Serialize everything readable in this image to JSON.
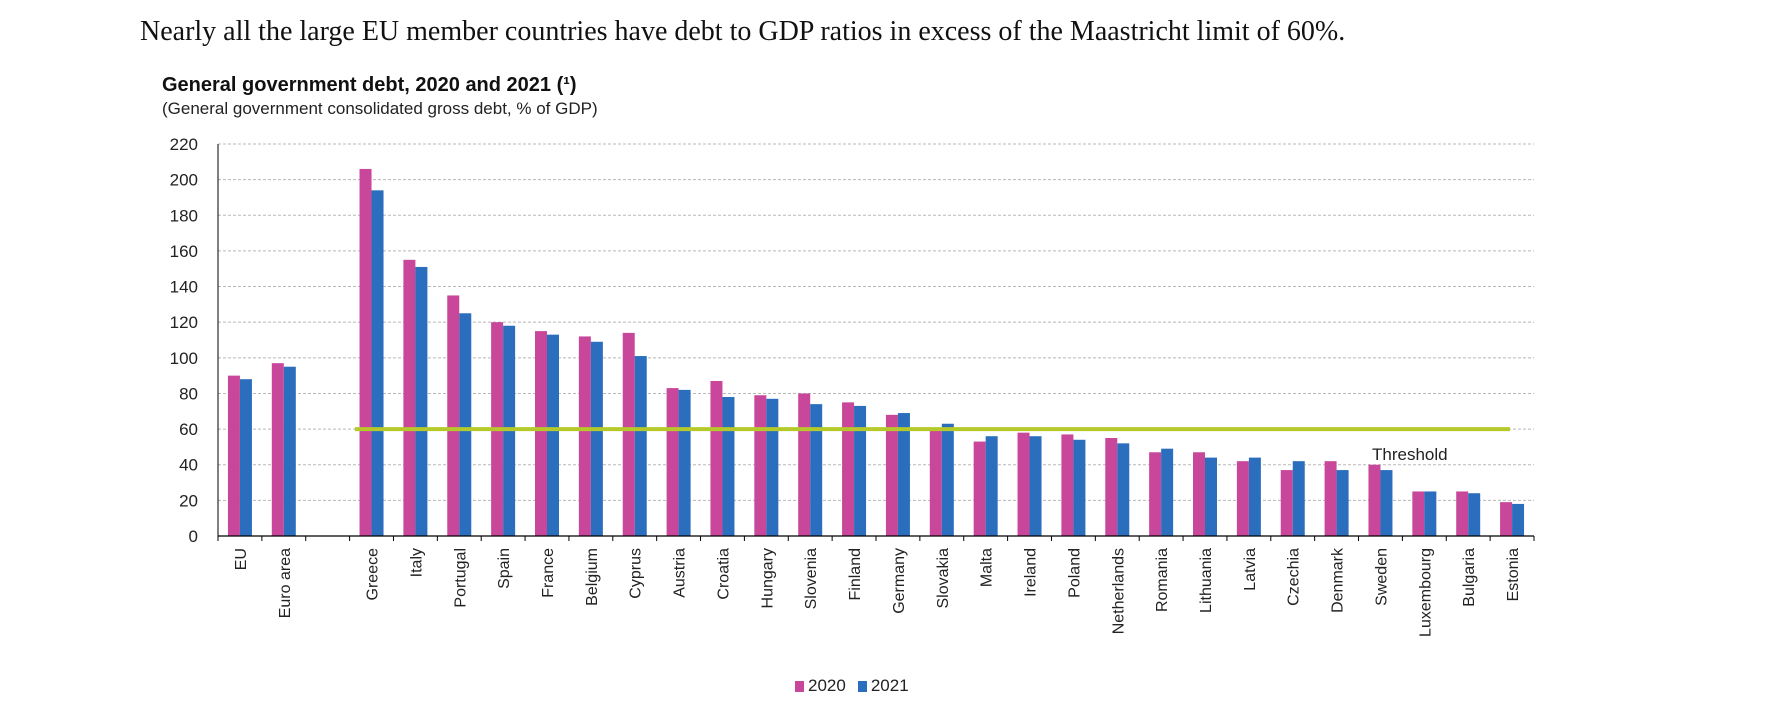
{
  "caption": "Nearly all the large EU member countries have debt to GDP ratios in excess of the Maastricht limit of 60%.",
  "chart_data": {
    "type": "bar",
    "title": "General government debt, 2020 and 2021 (¹)",
    "subtitle": "(General  government  consolidated gross debt, % of GDP)",
    "xlabel": "",
    "ylabel": "",
    "ylim": [
      0,
      220
    ],
    "yticks": [
      "0",
      "20",
      "40",
      "60",
      "80",
      "100",
      "120",
      "140",
      "160",
      "180",
      "200",
      "220"
    ],
    "grid": true,
    "legend_position": "bottom",
    "categories": [
      "EU",
      "Euro area",
      "",
      "Greece",
      "Italy",
      "Portugal",
      "Spain",
      "France",
      "Belgium",
      "Cyprus",
      "Austria",
      "Croatia",
      "Hungary",
      "Slovenia",
      "Finland",
      "Germany",
      "Slovakia",
      "Malta",
      "Ireland",
      "Poland",
      "Netherlands",
      "Romania",
      "Lithuania",
      "Latvia",
      "Czechia",
      "Denmark",
      "Sweden",
      "Luxembourg",
      "Bulgaria",
      "Estonia"
    ],
    "series": [
      {
        "name": "2020",
        "color": "#c8479a",
        "values": [
          90,
          97,
          null,
          206,
          155,
          135,
          120,
          115,
          112,
          114,
          83,
          87,
          79,
          80,
          75,
          68,
          59,
          53,
          58,
          57,
          55,
          47,
          47,
          42,
          37,
          42,
          40,
          25,
          25,
          19
        ]
      },
      {
        "name": "2021",
        "color": "#2a6ebd",
        "values": [
          88,
          95,
          null,
          194,
          151,
          125,
          118,
          113,
          109,
          101,
          82,
          78,
          77,
          74,
          73,
          69,
          63,
          56,
          56,
          54,
          52,
          49,
          44,
          44,
          42,
          37,
          37,
          25,
          24,
          18
        ]
      }
    ],
    "threshold": {
      "label": "Threshold",
      "value": 60,
      "color": "#b5c92a"
    }
  }
}
